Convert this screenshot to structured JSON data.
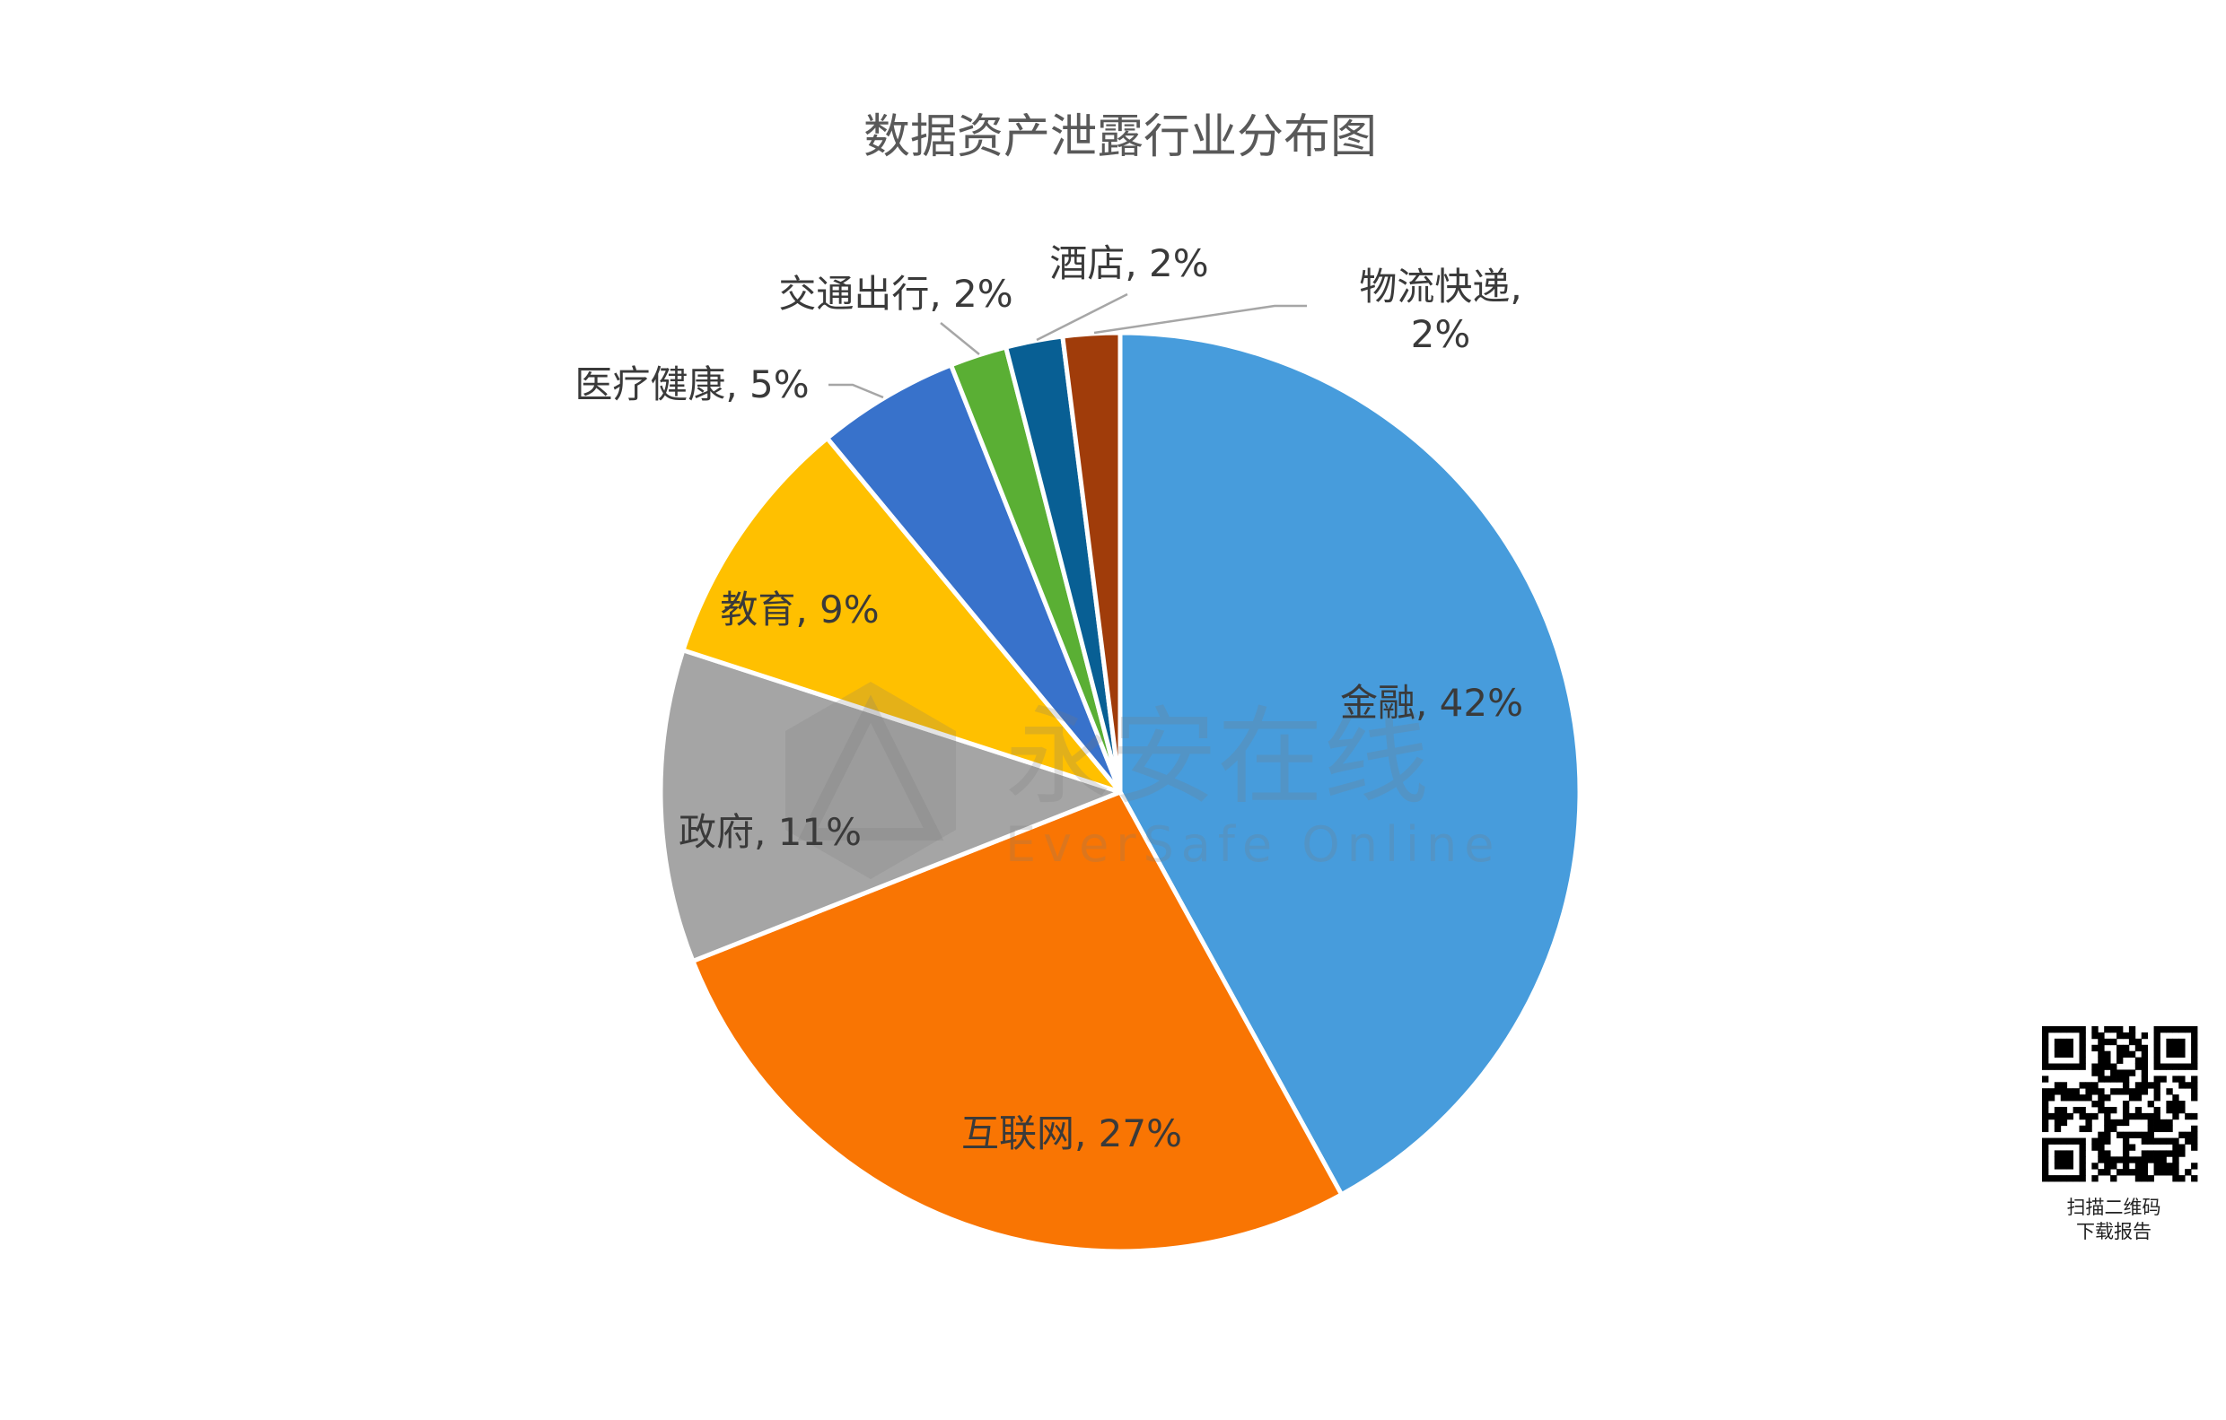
{
  "chart_data": {
    "type": "pie",
    "title": "数据资产泄露行业分布图",
    "start_angle": "12 o'clock",
    "direction": "clockwise",
    "slices": [
      {
        "label": "金融",
        "value": 42,
        "text": "金融, 42%",
        "color": "#479CDC"
      },
      {
        "label": "互联网",
        "value": 27,
        "text": "互联网, 27%",
        "color": "#F97503"
      },
      {
        "label": "政府",
        "value": 11,
        "text": "政府, 11%",
        "color": "#A5A5A5"
      },
      {
        "label": "教育",
        "value": 9,
        "text": "教育, 9%",
        "color": "#FFC000"
      },
      {
        "label": "医疗健康",
        "value": 5,
        "text": "医疗健康, 5%",
        "color": "#3872CB"
      },
      {
        "label": "交通出行",
        "value": 2,
        "text": "交通出行, 2%",
        "color": "#5AAF34"
      },
      {
        "label": "酒店",
        "value": 2,
        "text": "酒店, 2%",
        "color": "#085F94"
      },
      {
        "label": "物流快递",
        "value": 2,
        "text_line1": "物流快递,",
        "text_line2": "2%",
        "color": "#A03C0A"
      }
    ]
  },
  "watermark": {
    "cn": "永安在线",
    "en": "EverSafe  Online"
  },
  "qr": {
    "line1": "扫描二维码",
    "line2": "下载报告"
  }
}
